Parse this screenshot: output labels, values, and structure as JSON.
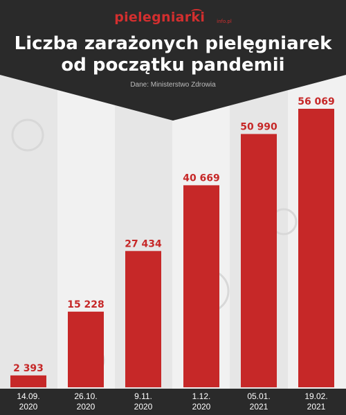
{
  "header": {
    "logo_main": "pielegniarki",
    "logo_sub": "info.pl",
    "title_line1": "Liczba zarażonych pielęgniarek",
    "title_line2": "od początku pandemii",
    "source": "Dane: Ministerstwo Zdrowia"
  },
  "colors": {
    "bar": "#c62828",
    "dark": "#2a2a2a",
    "accent": "#d32f2f"
  },
  "chart_data": {
    "type": "bar",
    "categories": [
      [
        "14.09.",
        "2020"
      ],
      [
        "26.10.",
        "2020"
      ],
      [
        "9.11.",
        "2020"
      ],
      [
        "1.12.",
        "2020"
      ],
      [
        "05.01.",
        "2021"
      ],
      [
        "19.02.",
        "2021"
      ]
    ],
    "values": [
      2393,
      15228,
      27434,
      40669,
      50990,
      56069
    ],
    "value_labels": [
      "2 393",
      "15 228",
      "27 434",
      "40 669",
      "50 990",
      "56 069"
    ],
    "title": "Liczba zarażonych pielęgniarek od początku pandemii",
    "xlabel": "",
    "ylabel": "",
    "ylim": [
      0,
      56069
    ],
    "grid": false,
    "legend": "none"
  }
}
